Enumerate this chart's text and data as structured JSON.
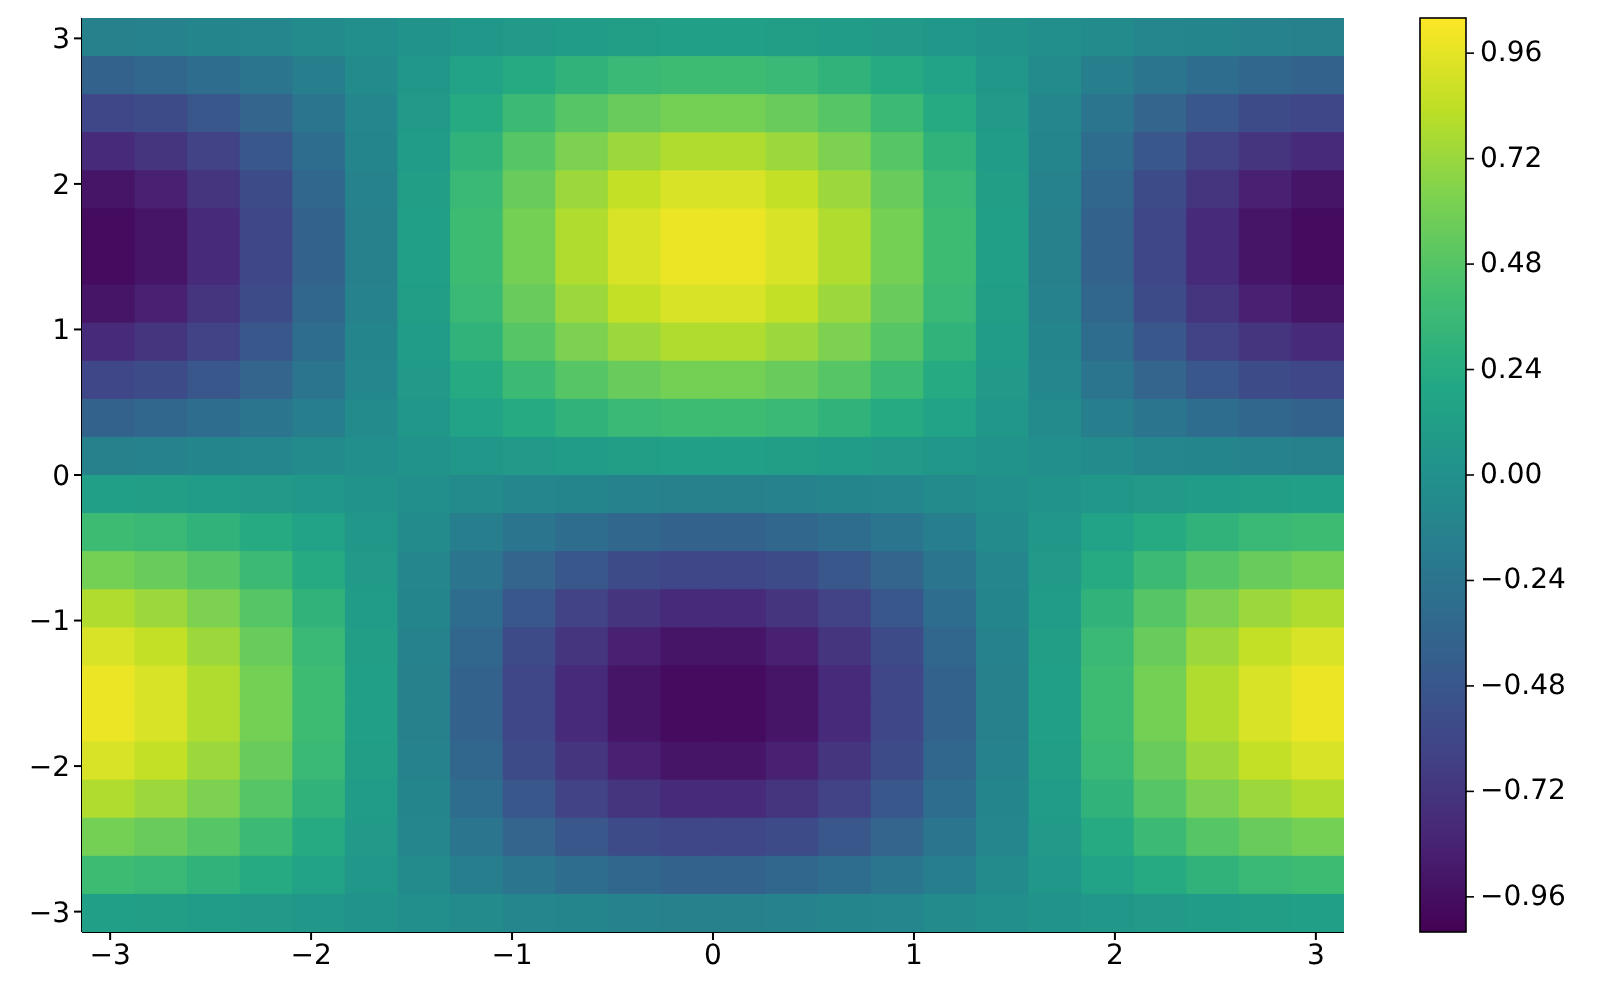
{
  "chart_data": {
    "type": "heatmap",
    "cells": [
      [
        -0.13,
        -0.12,
        -0.1,
        -0.08,
        -0.05,
        -0.02,
        0.02,
        0.05,
        0.08,
        0.1,
        0.12,
        0.13,
        0.13,
        0.12,
        0.1,
        0.08,
        0.05,
        0.02,
        -0.02,
        -0.05,
        -0.08,
        -0.1,
        -0.12,
        -0.13
      ],
      [
        -0.38,
        -0.35,
        -0.3,
        -0.23,
        -0.15,
        -0.05,
        0.05,
        0.15,
        0.23,
        0.3,
        0.35,
        0.38,
        0.38,
        0.35,
        0.3,
        0.23,
        0.15,
        0.05,
        -0.05,
        -0.15,
        -0.23,
        -0.3,
        -0.35,
        -0.38
      ],
      [
        -0.6,
        -0.56,
        -0.48,
        -0.37,
        -0.23,
        -0.08,
        0.08,
        0.23,
        0.37,
        0.48,
        0.56,
        0.6,
        0.6,
        0.56,
        0.48,
        0.37,
        0.23,
        0.08,
        -0.08,
        -0.23,
        -0.37,
        -0.48,
        -0.56,
        -0.6
      ],
      [
        -0.79,
        -0.73,
        -0.63,
        -0.48,
        -0.3,
        -0.1,
        0.1,
        0.3,
        0.48,
        0.63,
        0.73,
        0.79,
        0.79,
        0.73,
        0.63,
        0.48,
        0.3,
        0.1,
        -0.1,
        -0.3,
        -0.48,
        -0.63,
        -0.73,
        -0.79
      ],
      [
        -0.92,
        -0.85,
        -0.73,
        -0.56,
        -0.35,
        -0.12,
        0.12,
        0.35,
        0.56,
        0.73,
        0.85,
        0.92,
        0.92,
        0.85,
        0.73,
        0.56,
        0.35,
        0.12,
        -0.12,
        -0.35,
        -0.56,
        -0.73,
        -0.85,
        -0.92
      ],
      [
        -0.98,
        -0.92,
        -0.79,
        -0.6,
        -0.38,
        -0.13,
        0.13,
        0.38,
        0.6,
        0.79,
        0.92,
        0.98,
        0.98,
        0.92,
        0.79,
        0.6,
        0.38,
        0.13,
        -0.13,
        -0.38,
        -0.6,
        -0.79,
        -0.92,
        -0.98
      ],
      [
        -0.98,
        -0.92,
        -0.79,
        -0.6,
        -0.38,
        -0.13,
        0.13,
        0.38,
        0.6,
        0.79,
        0.92,
        0.98,
        0.98,
        0.92,
        0.79,
        0.6,
        0.38,
        0.13,
        -0.13,
        -0.38,
        -0.6,
        -0.79,
        -0.92,
        -0.98
      ],
      [
        -0.92,
        -0.85,
        -0.73,
        -0.56,
        -0.35,
        -0.12,
        0.12,
        0.35,
        0.56,
        0.73,
        0.85,
        0.92,
        0.92,
        0.85,
        0.73,
        0.56,
        0.35,
        0.12,
        -0.12,
        -0.35,
        -0.56,
        -0.73,
        -0.85,
        -0.92
      ],
      [
        -0.79,
        -0.73,
        -0.63,
        -0.48,
        -0.3,
        -0.1,
        0.1,
        0.3,
        0.48,
        0.63,
        0.73,
        0.79,
        0.79,
        0.73,
        0.63,
        0.48,
        0.3,
        0.1,
        -0.1,
        -0.3,
        -0.48,
        -0.63,
        -0.73,
        -0.79
      ],
      [
        -0.6,
        -0.56,
        -0.48,
        -0.37,
        -0.23,
        -0.08,
        0.08,
        0.23,
        0.37,
        0.48,
        0.56,
        0.6,
        0.6,
        0.56,
        0.48,
        0.37,
        0.23,
        0.08,
        -0.08,
        -0.23,
        -0.37,
        -0.48,
        -0.56,
        -0.6
      ],
      [
        -0.38,
        -0.35,
        -0.3,
        -0.23,
        -0.15,
        -0.05,
        0.05,
        0.15,
        0.23,
        0.3,
        0.35,
        0.38,
        0.38,
        0.35,
        0.3,
        0.23,
        0.15,
        0.05,
        -0.05,
        -0.15,
        -0.23,
        -0.3,
        -0.35,
        -0.38
      ],
      [
        -0.13,
        -0.12,
        -0.1,
        -0.08,
        -0.05,
        -0.02,
        0.02,
        0.05,
        0.08,
        0.1,
        0.12,
        0.13,
        0.13,
        0.12,
        0.1,
        0.08,
        0.05,
        0.02,
        -0.02,
        -0.05,
        -0.08,
        -0.1,
        -0.12,
        -0.13
      ],
      [
        0.13,
        0.12,
        0.1,
        0.08,
        0.05,
        0.02,
        -0.02,
        -0.05,
        -0.08,
        -0.1,
        -0.12,
        -0.13,
        -0.13,
        -0.12,
        -0.1,
        -0.08,
        -0.05,
        -0.02,
        0.02,
        0.05,
        0.08,
        0.1,
        0.12,
        0.13
      ],
      [
        0.38,
        0.35,
        0.3,
        0.23,
        0.15,
        0.05,
        -0.05,
        -0.15,
        -0.23,
        -0.3,
        -0.35,
        -0.38,
        -0.38,
        -0.35,
        -0.3,
        -0.23,
        -0.15,
        -0.05,
        0.05,
        0.15,
        0.23,
        0.3,
        0.35,
        0.38
      ],
      [
        0.6,
        0.56,
        0.48,
        0.37,
        0.23,
        0.08,
        -0.08,
        -0.23,
        -0.37,
        -0.48,
        -0.56,
        -0.6,
        -0.6,
        -0.56,
        -0.48,
        -0.37,
        -0.23,
        -0.08,
        0.08,
        0.23,
        0.37,
        0.48,
        0.56,
        0.6
      ],
      [
        0.79,
        0.73,
        0.63,
        0.48,
        0.3,
        0.1,
        -0.1,
        -0.3,
        -0.48,
        -0.63,
        -0.73,
        -0.79,
        -0.79,
        -0.73,
        -0.63,
        -0.48,
        -0.3,
        -0.1,
        0.1,
        0.3,
        0.48,
        0.63,
        0.73,
        0.79
      ],
      [
        0.92,
        0.85,
        0.73,
        0.56,
        0.35,
        0.12,
        -0.12,
        -0.35,
        -0.56,
        -0.73,
        -0.85,
        -0.92,
        -0.92,
        -0.85,
        -0.73,
        -0.56,
        -0.35,
        -0.12,
        0.12,
        0.35,
        0.56,
        0.73,
        0.85,
        0.92
      ],
      [
        0.98,
        0.92,
        0.79,
        0.6,
        0.38,
        0.13,
        -0.13,
        -0.38,
        -0.6,
        -0.79,
        -0.92,
        -0.98,
        -0.98,
        -0.92,
        -0.79,
        -0.6,
        -0.38,
        -0.13,
        0.13,
        0.38,
        0.6,
        0.79,
        0.92,
        0.98
      ],
      [
        0.98,
        0.92,
        0.79,
        0.6,
        0.38,
        0.13,
        -0.13,
        -0.38,
        -0.6,
        -0.79,
        -0.92,
        -0.98,
        -0.98,
        -0.92,
        -0.79,
        -0.6,
        -0.38,
        -0.13,
        0.13,
        0.38,
        0.6,
        0.79,
        0.92,
        0.98
      ],
      [
        0.92,
        0.85,
        0.73,
        0.56,
        0.35,
        0.12,
        -0.12,
        -0.35,
        -0.56,
        -0.73,
        -0.85,
        -0.92,
        -0.92,
        -0.85,
        -0.73,
        -0.56,
        -0.35,
        -0.12,
        0.12,
        0.35,
        0.56,
        0.73,
        0.85,
        0.92
      ],
      [
        0.79,
        0.73,
        0.63,
        0.48,
        0.3,
        0.1,
        -0.1,
        -0.3,
        -0.48,
        -0.63,
        -0.73,
        -0.79,
        -0.79,
        -0.73,
        -0.63,
        -0.48,
        -0.3,
        -0.1,
        0.1,
        0.3,
        0.48,
        0.63,
        0.73,
        0.79
      ],
      [
        0.6,
        0.56,
        0.48,
        0.37,
        0.23,
        0.08,
        -0.08,
        -0.23,
        -0.37,
        -0.48,
        -0.56,
        -0.6,
        -0.6,
        -0.56,
        -0.48,
        -0.37,
        -0.23,
        -0.08,
        0.08,
        0.23,
        0.37,
        0.48,
        0.56,
        0.6
      ],
      [
        0.38,
        0.35,
        0.3,
        0.23,
        0.15,
        0.05,
        -0.05,
        -0.15,
        -0.23,
        -0.3,
        -0.35,
        -0.38,
        -0.38,
        -0.35,
        -0.3,
        -0.23,
        -0.15,
        -0.05,
        0.05,
        0.15,
        0.23,
        0.3,
        0.35,
        0.38
      ],
      [
        0.13,
        0.12,
        0.1,
        0.08,
        0.05,
        0.02,
        -0.02,
        -0.05,
        -0.08,
        -0.1,
        -0.12,
        -0.13,
        -0.13,
        -0.12,
        -0.1,
        -0.08,
        -0.05,
        -0.02,
        0.02,
        0.05,
        0.08,
        0.1,
        0.12,
        0.13
      ]
    ],
    "xlim": [
      -3.14,
      3.14
    ],
    "ylim": [
      -3.14,
      3.14
    ],
    "xticks": [
      {
        "value": -3,
        "label": "−3"
      },
      {
        "value": -2,
        "label": "−2"
      },
      {
        "value": -1,
        "label": "−1"
      },
      0,
      1,
      2,
      3
    ],
    "yticks": [
      {
        "value": -3,
        "label": "−3"
      },
      {
        "value": -2,
        "label": "−2"
      },
      {
        "value": -1,
        "label": "−1"
      },
      0,
      1,
      2,
      3
    ],
    "clim": [
      -1.04,
      1.04
    ],
    "cticks": [
      {
        "value": -0.96,
        "label": "−0.96"
      },
      {
        "value": -0.72,
        "label": "−0.72"
      },
      {
        "value": -0.48,
        "label": "−0.48"
      },
      {
        "value": -0.24,
        "label": "−0.24"
      },
      {
        "value": 0,
        "label": "0.00"
      },
      0.24,
      0.48,
      0.72,
      0.96
    ]
  }
}
